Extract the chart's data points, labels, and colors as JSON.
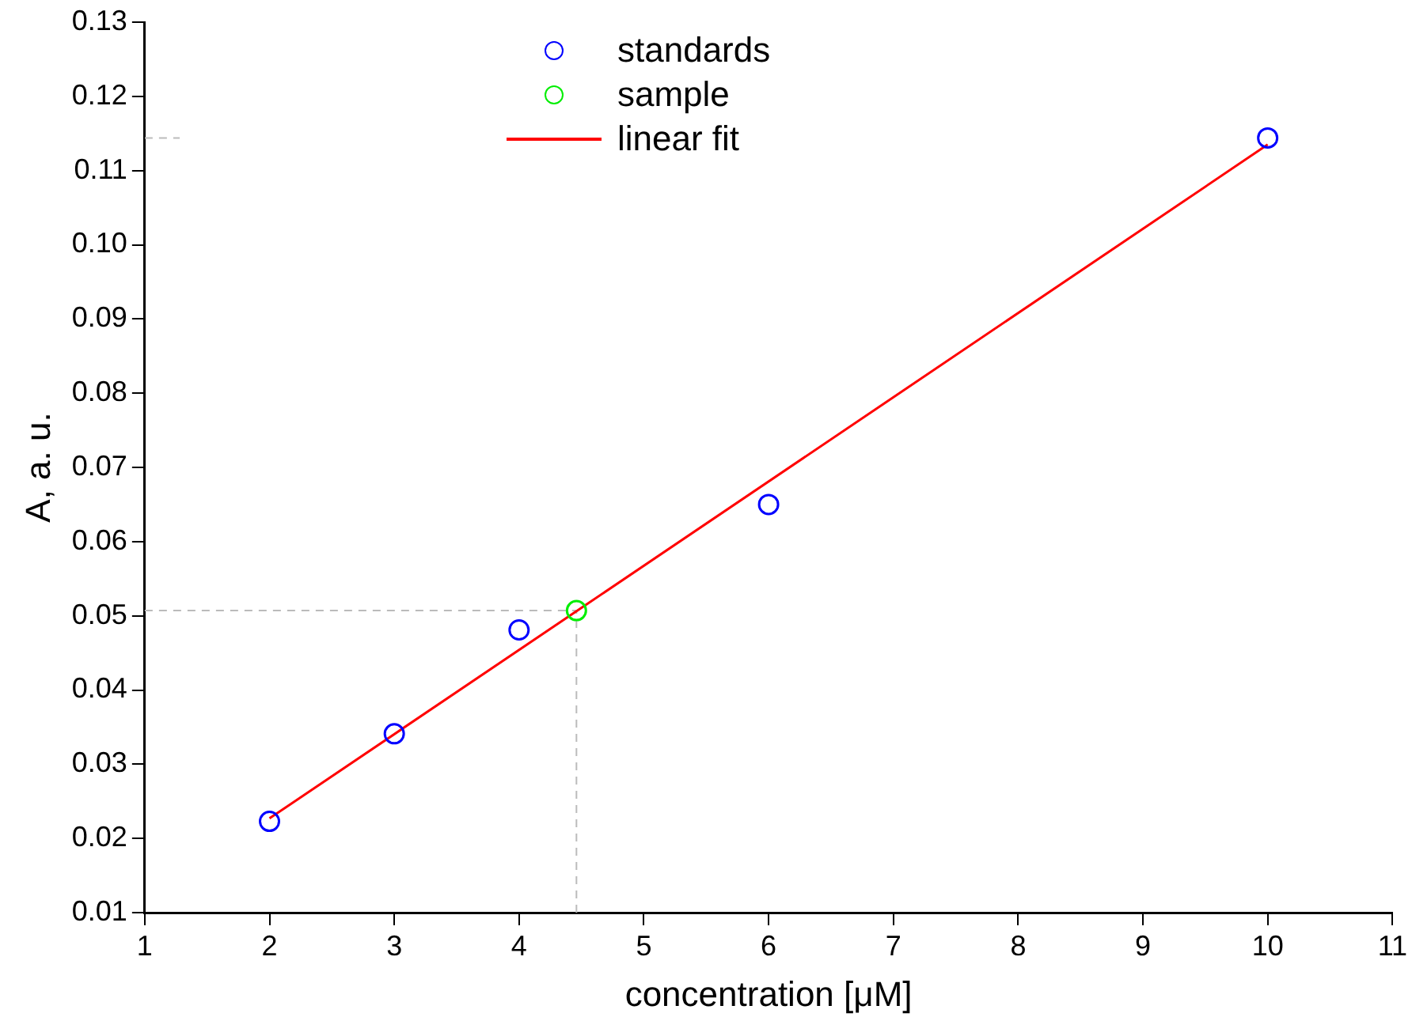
{
  "chart_data": {
    "type": "scatter",
    "xlabel": "concentration [μM]",
    "ylabel": "A, a. u.",
    "xlim": [
      1,
      11
    ],
    "xticks": [
      1,
      2,
      3,
      4,
      5,
      6,
      7,
      8,
      9,
      10,
      11
    ],
    "ylim": [
      0.01,
      0.13
    ],
    "yticks": [
      0.01,
      0.02,
      0.03,
      0.04,
      0.05,
      0.06,
      0.07,
      0.08,
      0.09,
      {
        "value": 0.1,
        "label": "0.10"
      },
      0.11,
      0.12,
      0.13
    ],
    "series": [
      {
        "name": "standards",
        "type": "scatter",
        "color": "#0000ff",
        "x": [
          2,
          3,
          4,
          6,
          10
        ],
        "values": [
          0.0223,
          0.0341,
          0.0481,
          0.065,
          0.1144
        ]
      },
      {
        "name": "sample",
        "type": "scatter",
        "color": "#00ee00",
        "x": [
          4.46
        ],
        "values": [
          0.0507
        ]
      },
      {
        "name": "linear fit",
        "type": "line",
        "marker": "none",
        "color": "#ff0000",
        "x": [
          2,
          10
        ],
        "values": [
          0.0227,
          0.1135
        ]
      },
      {
        "type": "line",
        "marker": "none",
        "line_style": "dashed",
        "color": "#bbbbbb",
        "x": [
          1,
          1.28
        ],
        "values": [
          0.1144,
          0.1144
        ]
      }
    ],
    "ref_lines": [
      {
        "axis": "y",
        "value": 0.0507,
        "color": "#bbbbbb",
        "line_style": "dashed"
      },
      {
        "axis": "x",
        "value": 4.46,
        "color": "#bbbbbb",
        "line_style": "dashed"
      }
    ],
    "marker": "circle",
    "grid": false,
    "legend": "top"
  }
}
